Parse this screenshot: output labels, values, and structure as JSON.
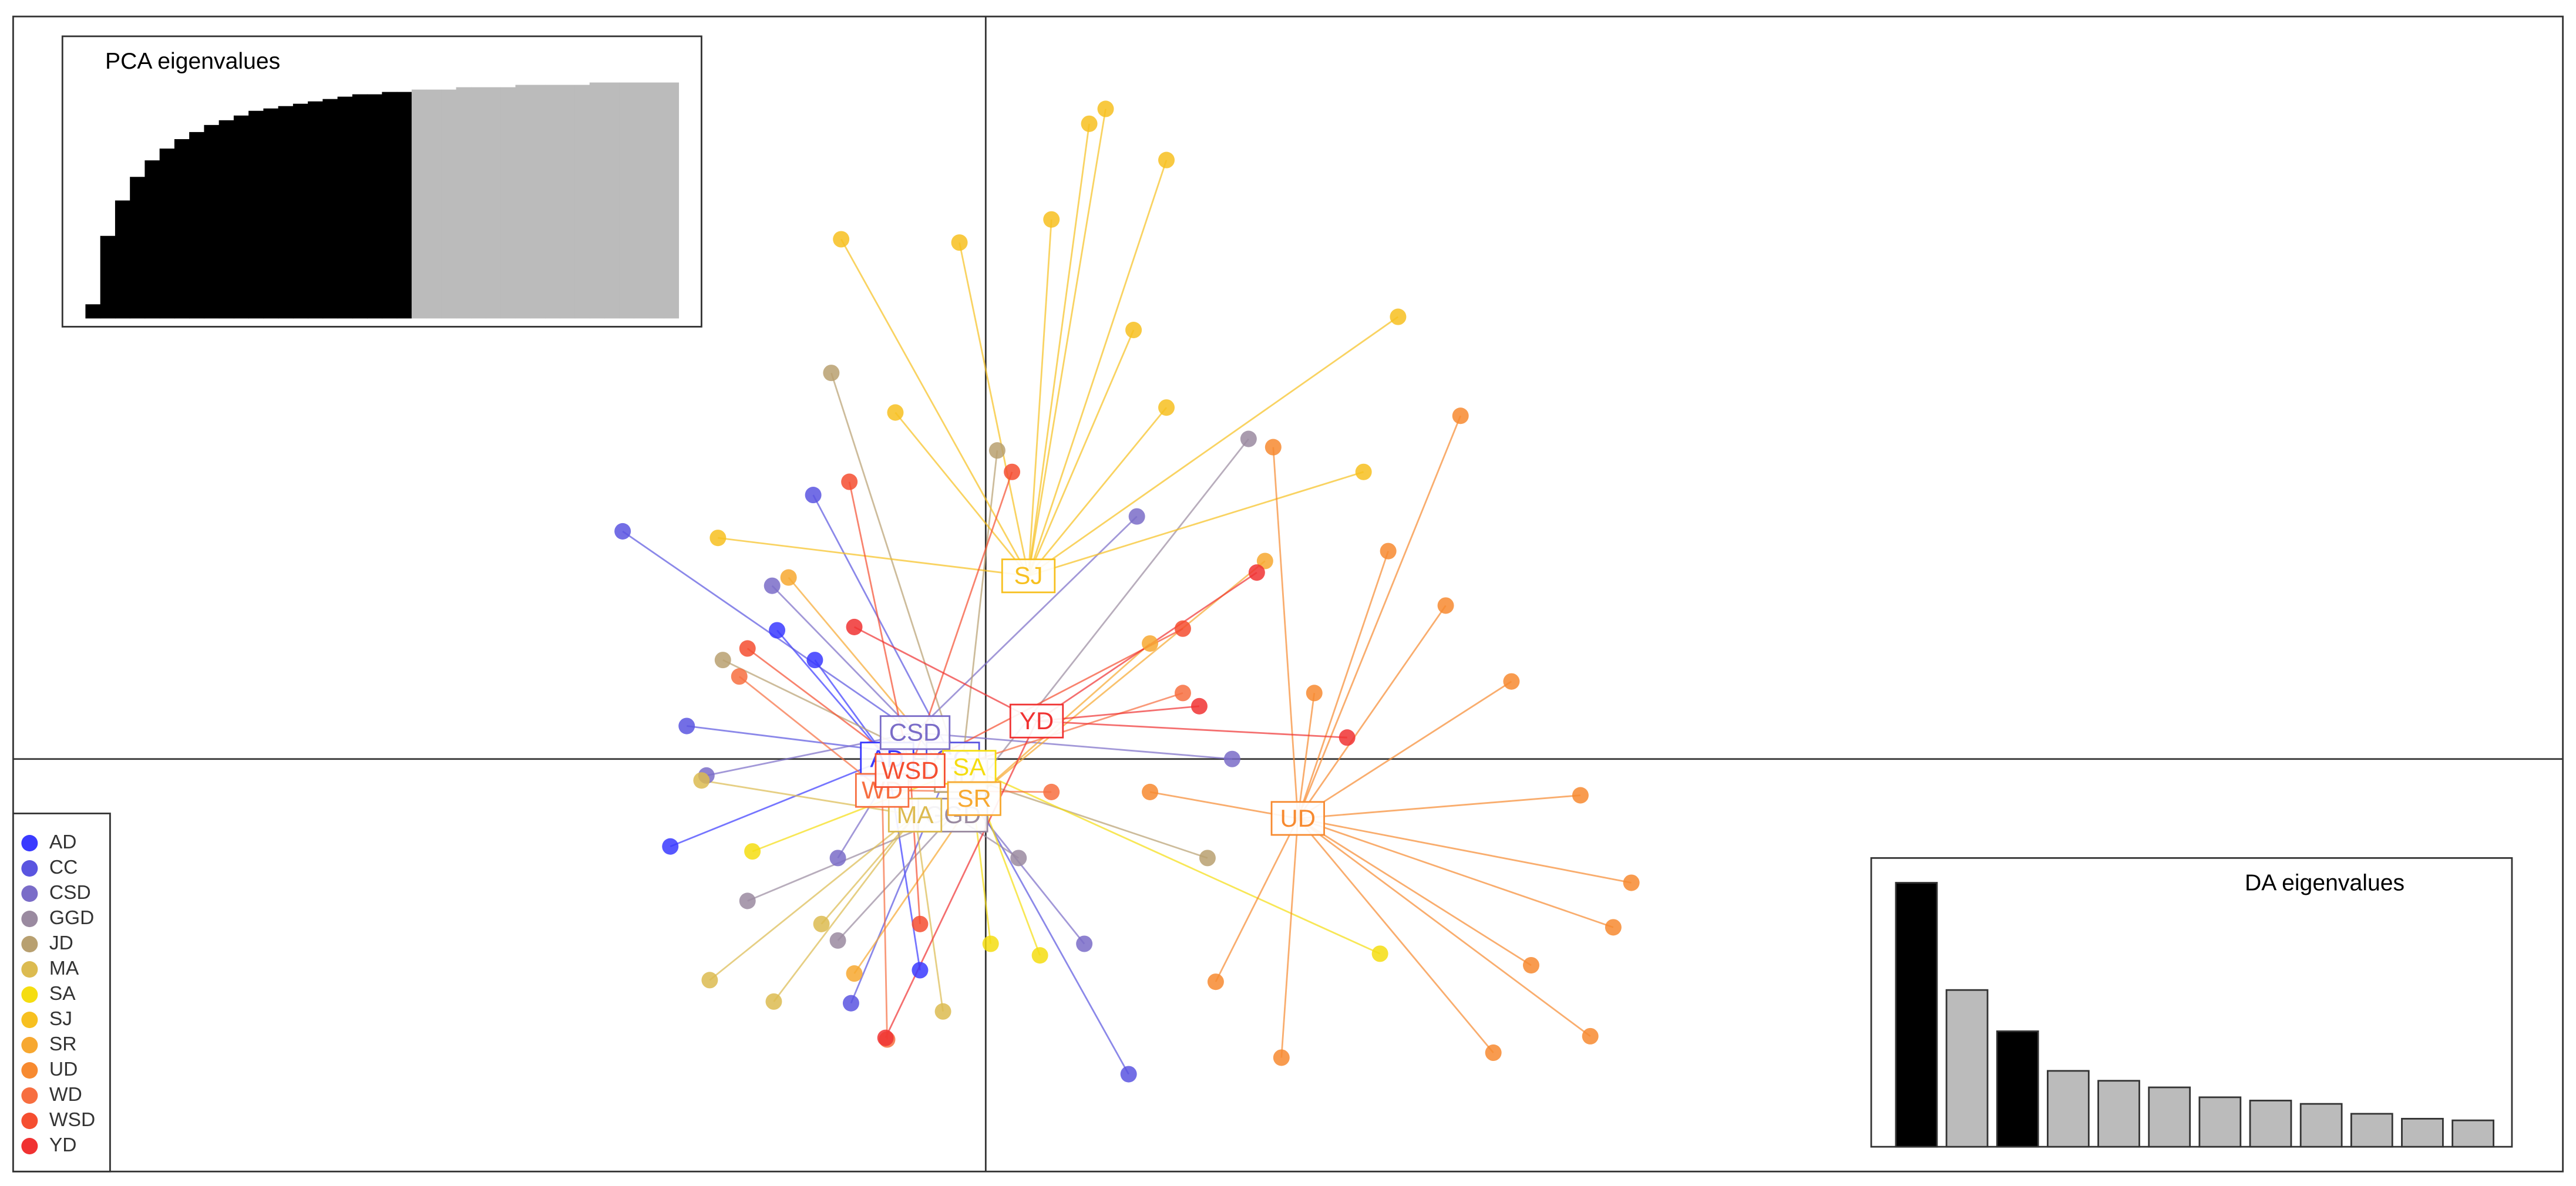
{
  "chart_data": {
    "type": "scatter",
    "xlim": [
      -5.92,
      9.6
    ],
    "ylim": [
      -2.5,
      4.5
    ],
    "series": [
      {
        "name": "AD",
        "color": "#3a3aff",
        "center": [
          -0.6,
          0.0
        ],
        "x": [
          -1.27,
          -1.92,
          -0.4,
          -1.04
        ],
        "y": [
          0.78,
          -0.53,
          -1.28,
          0.6
        ]
      },
      {
        "name": "CC",
        "color": "#5a55e0",
        "center": [
          -0.2,
          0.0
        ],
        "x": [
          -2.21,
          -0.82,
          0.87,
          -1.05,
          -1.82
        ],
        "y": [
          1.38,
          -1.48,
          -1.91,
          1.6,
          0.2
        ]
      },
      {
        "name": "CSD",
        "color": "#7a6cc8",
        "center": [
          -0.43,
          0.16
        ],
        "x": [
          0.92,
          0.6,
          -1.3,
          -1.7,
          -0.9,
          1.5
        ],
        "y": [
          1.47,
          -1.12,
          1.05,
          -0.1,
          -0.6,
          0.0
        ]
      },
      {
        "name": "GGD",
        "color": "#9a8aa0",
        "center": [
          -0.2,
          -0.34
        ],
        "x": [
          1.6,
          -1.45,
          -0.9,
          0.2
        ],
        "y": [
          1.94,
          -0.86,
          -1.1,
          -0.6
        ]
      },
      {
        "name": "JD",
        "color": "#b8a070",
        "center": [
          -0.15,
          -0.1
        ],
        "x": [
          -0.94,
          0.07,
          1.35,
          -1.6
        ],
        "y": [
          2.34,
          1.87,
          -0.6,
          0.6
        ]
      },
      {
        "name": "MA",
        "color": "#dcbb50",
        "center": [
          -0.43,
          -0.34
        ],
        "x": [
          -1.68,
          -1.29,
          -0.26,
          -1.73,
          -1.0
        ],
        "y": [
          -1.34,
          -1.47,
          -1.53,
          -0.13,
          -1.0
        ]
      },
      {
        "name": "SA",
        "color": "#f5dd10",
        "center": [
          -0.1,
          -0.05
        ],
        "x": [
          2.4,
          0.33,
          -1.42,
          0.03
        ],
        "y": [
          -1.18,
          -1.19,
          -0.56,
          -1.12
        ]
      },
      {
        "name": "SJ",
        "color": "#f7c020",
        "center": [
          0.26,
          1.11
        ],
        "x": [
          0.73,
          1.1,
          -0.88,
          -0.16,
          2.51,
          2.3,
          -1.63,
          0.63,
          0.4,
          0.9,
          -0.55,
          1.1
        ],
        "y": [
          3.94,
          3.63,
          3.15,
          3.13,
          2.68,
          1.74,
          1.34,
          3.85,
          3.27,
          2.6,
          2.1,
          2.13
        ]
      },
      {
        "name": "SR",
        "color": "#f7a830",
        "center": [
          -0.07,
          -0.24
        ],
        "x": [
          1.7,
          -1.2,
          1.0,
          -0.8
        ],
        "y": [
          1.2,
          1.1,
          0.7,
          -1.3
        ]
      },
      {
        "name": "UD",
        "color": "#f78a30",
        "center": [
          1.9,
          -0.36
        ],
        "x": [
          2.89,
          1.75,
          3.2,
          3.62,
          3.93,
          3.68,
          3.09,
          1.8,
          1.4,
          2.8,
          2.45,
          3.32,
          3.82,
          2.0,
          1.0
        ],
        "y": [
          2.08,
          1.89,
          0.47,
          -0.22,
          -0.75,
          -1.68,
          -1.78,
          -1.81,
          -1.35,
          0.93,
          1.26,
          -1.25,
          -1.02,
          0.4,
          -0.2
        ]
      },
      {
        "name": "WD",
        "color": "#f76e40",
        "center": [
          -0.63,
          -0.19
        ],
        "x": [
          -0.6,
          -1.5,
          0.4,
          1.2
        ],
        "y": [
          -1.7,
          0.5,
          -0.2,
          0.4
        ]
      },
      {
        "name": "WSD",
        "color": "#f54e30",
        "center": [
          -0.46,
          -0.07
        ],
        "x": [
          -0.83,
          0.16,
          1.2,
          -1.45,
          -0.4
        ],
        "y": [
          1.68,
          1.74,
          0.79,
          0.67,
          -1.0
        ]
      },
      {
        "name": "YD",
        "color": "#f03232",
        "center": [
          0.31,
          0.23
        ],
        "x": [
          -0.61,
          1.65,
          2.2,
          1.3,
          -0.8
        ],
        "y": [
          -1.69,
          1.13,
          0.13,
          0.32,
          0.8
        ]
      }
    ],
    "pca_eigenvalues": {
      "title": "PCA eigenvalues",
      "retained": 22,
      "values": [
        6,
        35,
        50,
        60,
        67,
        72,
        76,
        79,
        82,
        84,
        86,
        88,
        89,
        90,
        91,
        92,
        93,
        94,
        95,
        95,
        96,
        96,
        97,
        97,
        97,
        98,
        98,
        98,
        98,
        99,
        99,
        99,
        99,
        99,
        100,
        100,
        100,
        100,
        100,
        100
      ]
    },
    "da_eigenvalues": {
      "title": "DA eigenvalues",
      "values": [
        160,
        95,
        70,
        46,
        40,
        36,
        30,
        28,
        26,
        20,
        17,
        16
      ],
      "colors": [
        "#000000",
        "#bbbbbb",
        "#000000",
        "#bbbbbb",
        "#bbbbbb",
        "#bbbbbb",
        "#bbbbbb",
        "#bbbbbb",
        "#bbbbbb",
        "#bbbbbb",
        "#bbbbbb",
        "#bbbbbb"
      ]
    }
  }
}
